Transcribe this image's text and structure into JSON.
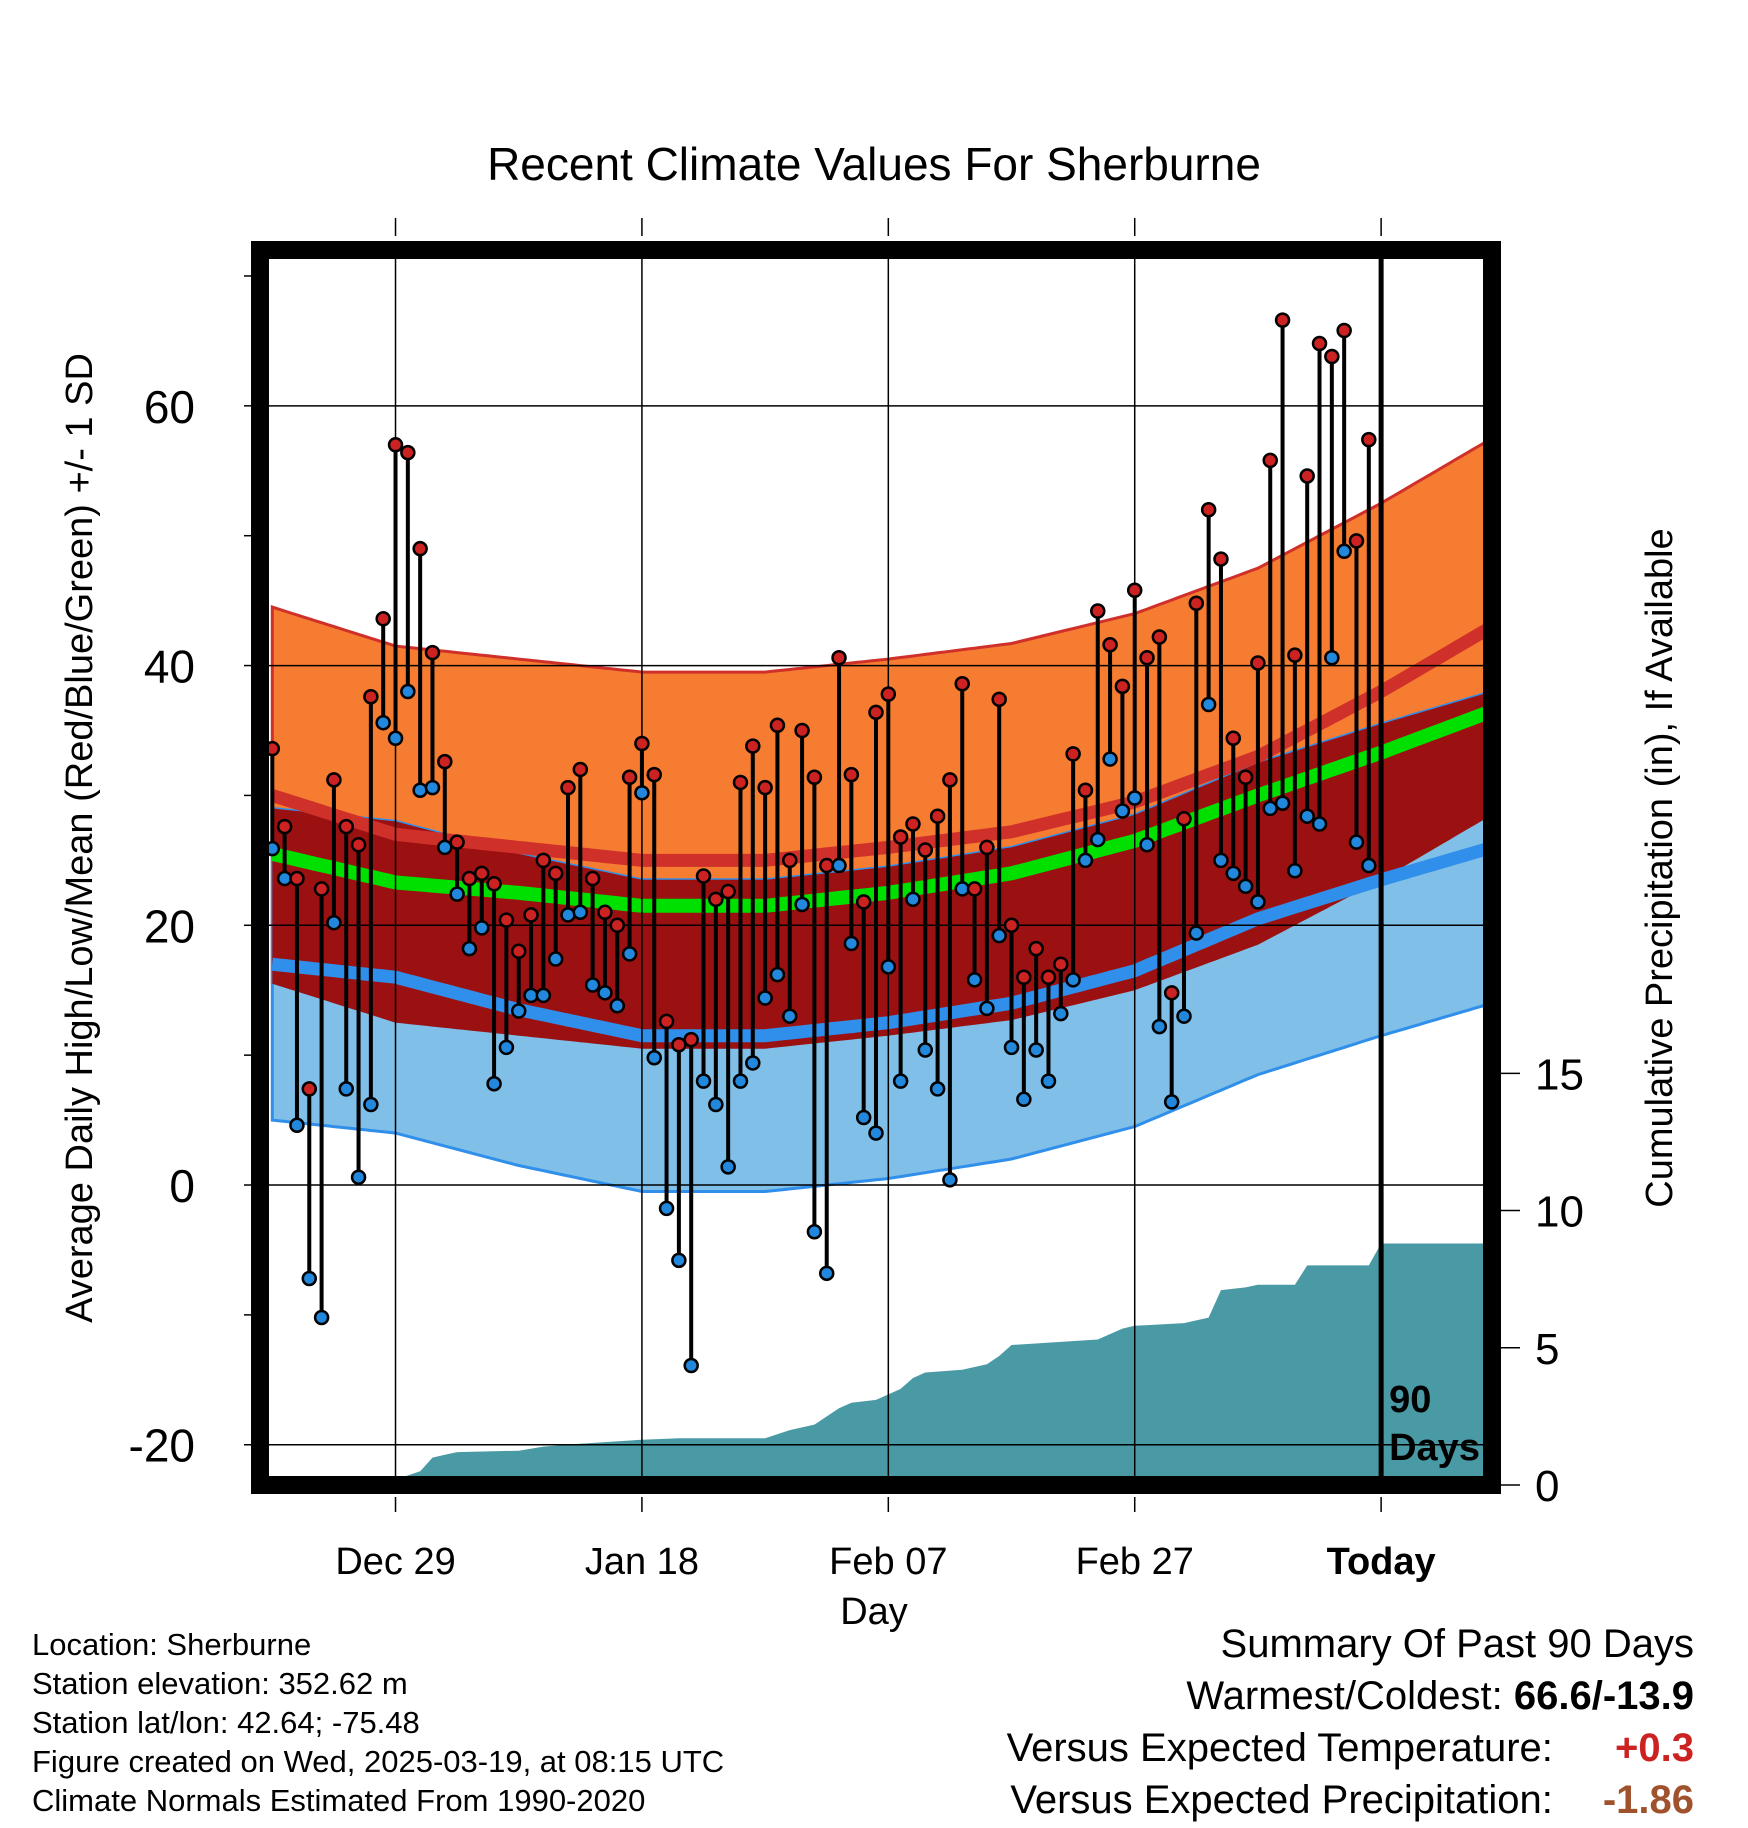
{
  "chart_data": {
    "type": "line",
    "title": "Recent Climate Values For Sherburne",
    "xlabel": "Day",
    "ylabel": "Average Daily High/Low/Mean (Red/Blue/Green) +/- 1 SD",
    "y2label": "Cumulative Precipitation (in), If Available",
    "x_tick_labels": [
      "Dec 29",
      "Jan 18",
      "Feb 07",
      "Feb 27",
      "Today"
    ],
    "x_tick_days": [
      10,
      30,
      50,
      70,
      90
    ],
    "x_range": [
      -1,
      99
    ],
    "y_ticks": [
      -20,
      0,
      20,
      40,
      60
    ],
    "y_range": [
      -23.1,
      72
    ],
    "y2_ticks": [
      0,
      5,
      10,
      15
    ],
    "y2_range": [
      0,
      45
    ],
    "grid": true,
    "today_marker": "90 Days",
    "normal_high": {
      "x": [
        0,
        10,
        20,
        30,
        40,
        50,
        60,
        70,
        80,
        90,
        99
      ],
      "mean": [
        30.0,
        27.0,
        26.0,
        25.0,
        25.0,
        26.0,
        27.2,
        29.5,
        33.0,
        38.0,
        43.0
      ],
      "sd": 14.5
    },
    "normal_low": {
      "x": [
        0,
        10,
        20,
        30,
        40,
        50,
        60,
        70,
        80,
        90,
        99
      ],
      "mean": [
        17.0,
        16.0,
        13.5,
        11.5,
        11.5,
        12.5,
        14.0,
        16.5,
        20.5,
        23.5,
        26.0
      ],
      "sd": 12.0
    },
    "normal_mean": {
      "x": [
        0,
        10,
        20,
        30,
        40,
        50,
        60,
        70,
        80,
        90,
        99
      ],
      "values": [
        25.5,
        23.3,
        22.5,
        21.5,
        21.5,
        22.5,
        24.0,
        26.5,
        30.0,
        33.3,
        36.5
      ]
    },
    "daily_high": [
      33.6,
      27.6,
      23.6,
      7.4,
      22.8,
      31.2,
      27.6,
      26.2,
      37.6,
      43.6,
      57.0,
      56.4,
      49.0,
      41.0,
      32.6,
      26.4,
      23.6,
      24.0,
      23.2,
      20.4,
      18.0,
      20.8,
      25.0,
      24.0,
      30.6,
      32.0,
      23.6,
      21.0,
      20.0,
      31.4,
      34.0,
      31.6,
      12.6,
      10.8,
      11.2,
      23.8,
      22.0,
      22.6,
      31.0,
      33.8,
      30.6,
      35.4,
      25.0,
      35.0,
      31.4,
      24.6,
      40.6,
      31.6,
      21.8,
      36.4,
      37.8,
      26.8,
      27.8,
      25.8,
      28.4,
      31.2,
      38.6,
      22.8,
      26.0,
      37.4,
      20.0,
      16.0,
      18.2,
      16.0,
      17.0,
      33.2,
      30.4,
      44.2,
      41.6,
      38.4,
      45.8,
      40.6,
      42.2,
      14.8,
      28.2,
      44.8,
      52.0,
      48.2,
      34.4,
      31.4,
      40.2,
      55.8,
      66.6,
      40.8,
      54.6,
      64.8,
      63.8,
      65.8,
      49.6,
      57.4
    ],
    "daily_low": [
      25.9,
      23.6,
      4.6,
      -7.2,
      -10.2,
      20.2,
      7.4,
      0.6,
      6.2,
      35.6,
      34.4,
      38.0,
      30.4,
      30.6,
      26.0,
      22.4,
      18.2,
      19.8,
      7.8,
      10.6,
      13.4,
      14.6,
      14.6,
      17.4,
      20.8,
      21.0,
      15.4,
      14.8,
      13.8,
      17.8,
      30.2,
      9.8,
      -1.8,
      -5.8,
      -13.9,
      8.0,
      6.2,
      1.4,
      8.0,
      9.4,
      14.4,
      16.2,
      13.0,
      21.6,
      -3.6,
      -6.8,
      24.6,
      18.6,
      5.2,
      4.0,
      16.8,
      8.0,
      22.0,
      10.4,
      7.4,
      0.4,
      22.8,
      15.8,
      13.6,
      19.2,
      10.6,
      6.6,
      10.4,
      8.0,
      13.2,
      15.8,
      25.0,
      26.6,
      32.8,
      28.8,
      29.8,
      26.2,
      12.2,
      6.4,
      13.0,
      19.4,
      37.0,
      25.0,
      24.0,
      23.0,
      21.8,
      29.0,
      29.4,
      24.2,
      28.4,
      27.8,
      40.6,
      48.8,
      26.4,
      24.6
    ],
    "cumulative_precipitation": {
      "x": [
        0,
        9,
        10,
        12,
        13,
        14,
        15,
        20,
        22,
        25,
        30,
        33,
        40,
        42,
        44,
        46,
        47,
        49,
        51,
        52,
        53,
        56,
        58,
        59,
        60,
        67,
        69,
        70,
        74,
        76,
        77,
        79,
        80,
        83,
        84,
        89,
        90,
        99
      ],
      "values": [
        0,
        0,
        0.2,
        0.5,
        1.0,
        1.1,
        1.2,
        1.25,
        1.4,
        1.5,
        1.65,
        1.7,
        1.7,
        2.0,
        2.2,
        2.8,
        3.0,
        3.1,
        3.5,
        3.9,
        4.1,
        4.2,
        4.4,
        4.7,
        5.1,
        5.3,
        5.7,
        5.8,
        5.9,
        6.1,
        7.1,
        7.2,
        7.3,
        7.3,
        8.0,
        8.0,
        8.8,
        8.8
      ]
    },
    "colors": {
      "high_band": "#f57c30",
      "high_line": "#d0302a",
      "low_band": "#7fbfe8",
      "low_line": "#2f8fea",
      "mean_band": "#9b1111",
      "mean_line": "#00e000",
      "precip": "#4a9aa5",
      "high_dot": "#cc2222",
      "low_dot": "#2288dd"
    }
  },
  "info": {
    "location": "Location: Sherburne",
    "elevation": "Station elevation: 352.62 m",
    "latlon": "Station lat/lon: 42.64; -75.48",
    "created": "Figure created on Wed, 2025-03-19, at 08:15 UTC",
    "normals": "Climate Normals Estimated From 1990-2020"
  },
  "summary": {
    "heading": "Summary Of Past 90 Days",
    "warmest_label": "Warmest/Coldest:",
    "warmest_value": "66.6/-13.9",
    "temp_label": "Versus Expected Temperature:",
    "temp_value": "+0.3",
    "temp_color": "#cc2222",
    "precip_label": "Versus Expected Precipitation:",
    "precip_value": "-1.86",
    "precip_color": "#a0522d"
  }
}
